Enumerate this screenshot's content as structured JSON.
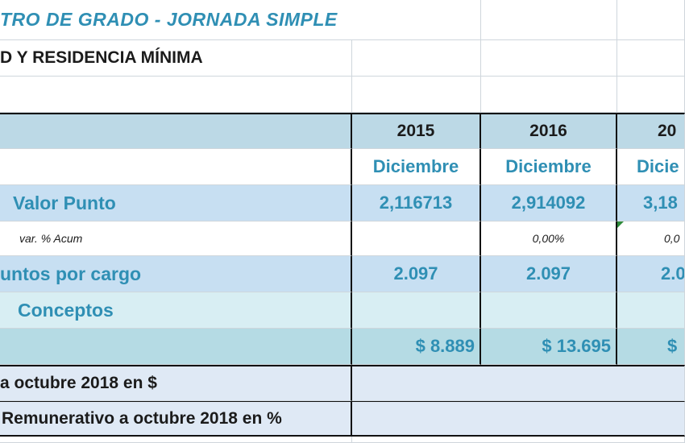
{
  "sheet": {
    "title": "TRO DE GRADO - JORNADA SIMPLE",
    "subtitle": "D Y RESIDENCIA MÍNIMA",
    "years": [
      "2015",
      "2016",
      "20"
    ],
    "months": [
      "Diciembre",
      "Diciembre",
      "Dicie"
    ],
    "rows": {
      "valor_punto": {
        "label": "Valor Punto",
        "values": [
          "2,116713",
          "2,914092",
          "3,18"
        ]
      },
      "var_acum": {
        "label": "var. % Acum",
        "values": [
          "",
          "0,00%",
          "0,0"
        ]
      },
      "puntos_cargo": {
        "label": "untos por cargo",
        "values": [
          "2.097",
          "2.097",
          "2.0"
        ]
      },
      "conceptos": {
        "label": "Conceptos"
      },
      "total": {
        "values": [
          "$ 8.889",
          "$ 13.695",
          "$"
        ]
      },
      "octubre": {
        "label": "a octubre 2018 en $"
      },
      "remunerativo": {
        "label": "Remunerativo a octubre 2018 en %"
      }
    },
    "colors": {
      "teal_text": "#2f8fb4",
      "blue_fill": "#bcd9e6",
      "light_fill": "#d8eef3"
    }
  }
}
